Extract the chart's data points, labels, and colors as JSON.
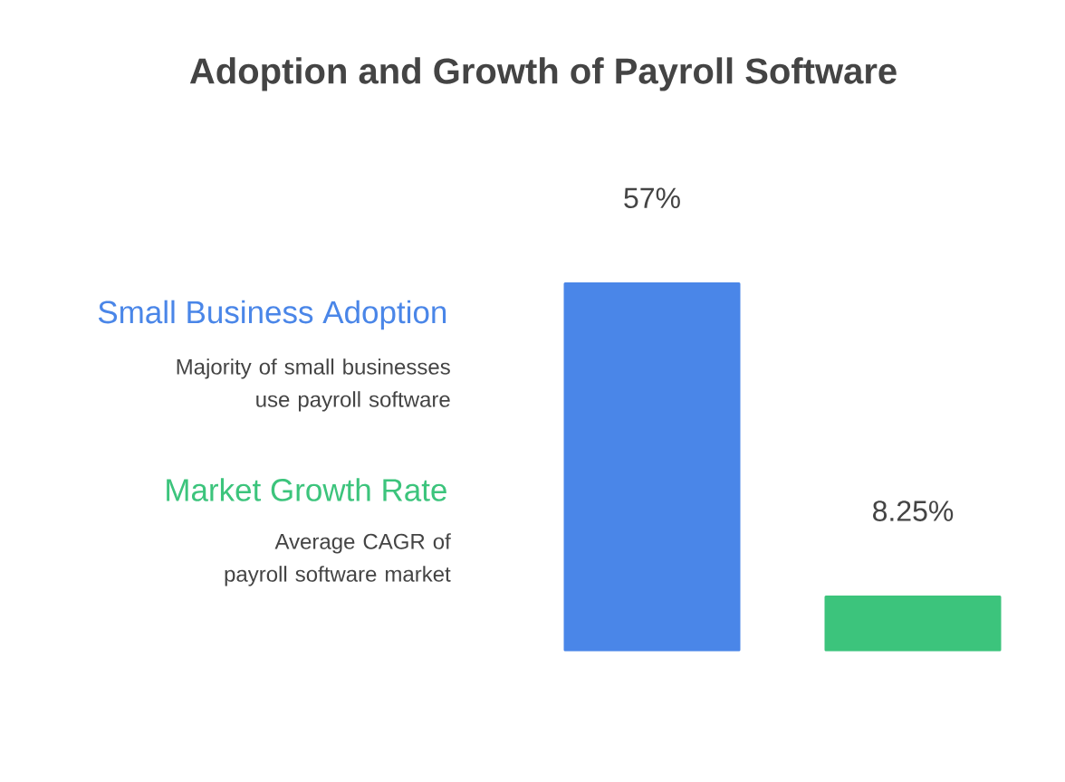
{
  "chart_data": {
    "type": "bar",
    "title": "Adoption and Growth of Payroll Software",
    "categories": [
      null,
      null
    ],
    "values": [
      57,
      8.25
    ],
    "colors": [
      "#4a86e8",
      "#3cc47c"
    ],
    "value_labels": [
      "57%",
      "8.25%"
    ],
    "annotations": [
      "Small Business Adoption",
      "Majority of small businesses use payroll software",
      "Market Growth Rate",
      "Average CAGR of payroll software market"
    ]
  }
}
